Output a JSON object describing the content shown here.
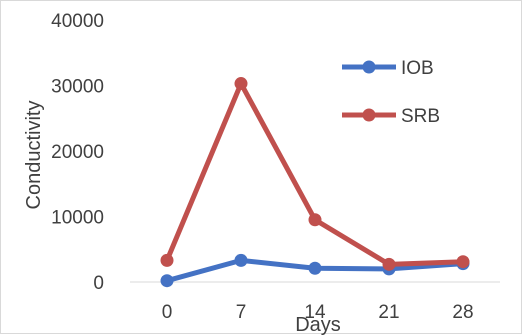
{
  "chart_data": {
    "type": "line",
    "title": "",
    "xlabel": "Days",
    "ylabel": "Conductivity",
    "categories": [
      "0",
      "7",
      "14",
      "21",
      "28"
    ],
    "ylim": [
      0,
      40000
    ],
    "yticks": [
      "0",
      "10000",
      "20000",
      "30000",
      "40000"
    ],
    "grid": false,
    "legend_position": "right",
    "series": [
      {
        "name": "IOB",
        "color": "#4472c4",
        "values": [
          200,
          3300,
          2100,
          2000,
          2800
        ]
      },
      {
        "name": "SRB",
        "color": "#c0504d",
        "values": [
          3300,
          30300,
          9500,
          2700,
          3100
        ]
      }
    ]
  }
}
